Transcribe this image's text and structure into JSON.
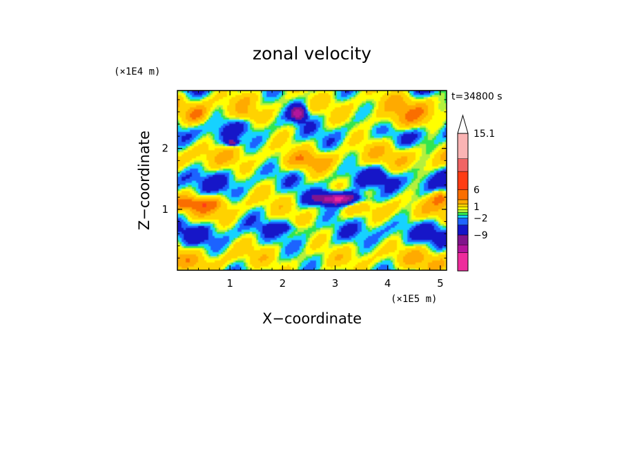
{
  "chart_data": {
    "type": "heatmap",
    "title": "zonal velocity",
    "xlabel": "X−coordinate",
    "ylabel": "Z−coordinate",
    "x_unit": "(×1E5 m)",
    "y_unit": "(×1E4 m)",
    "time_label": "t=34800 s",
    "xlim": [
      0,
      5.12
    ],
    "ylim": [
      0,
      2.95
    ],
    "x_ticks": [
      "1",
      "2",
      "3",
      "4",
      "5"
    ],
    "x_tick_values": [
      1,
      2,
      3,
      4,
      5
    ],
    "y_ticks": [
      "1",
      "2"
    ],
    "y_tick_values": [
      1,
      2
    ],
    "grid": false,
    "colorbar": {
      "labels": [
        "15.1",
        "6",
        "1",
        "−2",
        "−9"
      ],
      "label_values": [
        15.1,
        6,
        1,
        -2,
        -9
      ],
      "colors": [
        "#ee2c9c",
        "#b4149c",
        "#80148c",
        "#1414c8",
        "#1e64ff",
        "#14d2ff",
        "#32e650",
        "#b4f03c",
        "#ffff00",
        "#ffd200",
        "#ffaa00",
        "#fa6e00",
        "#ff3c14",
        "#f06464",
        "#fab4b4"
      ]
    },
    "features": [
      {
        "name": "strong westward jet",
        "x": [
          2.55,
          3.55
        ],
        "z": [
          1.05,
          1.28
        ],
        "sign": "negative"
      },
      {
        "name": "negative core",
        "x": [
          2.15,
          2.45
        ],
        "z": [
          2.45,
          2.7
        ],
        "sign": "negative"
      },
      {
        "name": "eastward band",
        "x": [
          0,
          0.9
        ],
        "z": [
          1.0,
          1.2
        ],
        "sign": "positive"
      },
      {
        "name": "eastward band",
        "x": [
          3.5,
          4.6
        ],
        "z": [
          2.2,
          2.8
        ],
        "sign": "positive"
      }
    ]
  }
}
